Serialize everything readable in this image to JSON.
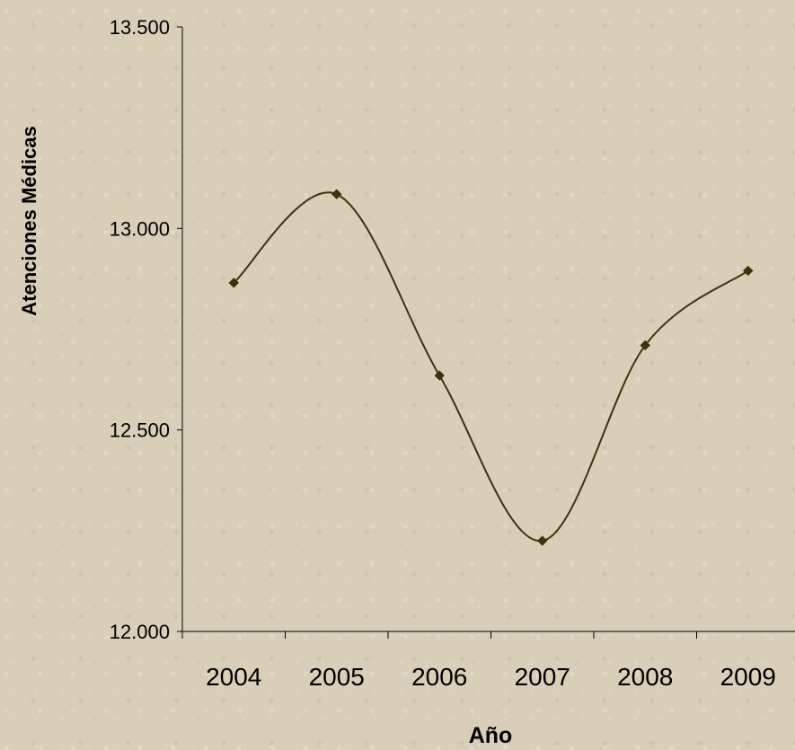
{
  "chart_data": {
    "type": "line",
    "title": "",
    "xlabel": "Año",
    "ylabel": "Atenciones Médicas",
    "categories": [
      "2004",
      "2005",
      "2006",
      "2007",
      "2008",
      "2009"
    ],
    "series": [
      {
        "values": [
          12865,
          13085,
          12635,
          12225,
          12710,
          12895
        ]
      }
    ],
    "ylim": [
      12000,
      13500
    ],
    "yticks": [
      12000,
      12500,
      13000,
      13500
    ],
    "ytick_labels": [
      "12.000",
      "12.500",
      "13.000",
      "13.500"
    ],
    "smooth": true,
    "marker": "diamond",
    "legend": "none",
    "grid": false,
    "line_color": "#3a330c",
    "axis_color": "#000000"
  }
}
